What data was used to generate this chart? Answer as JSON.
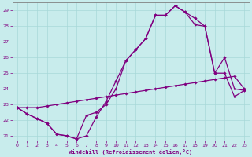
{
  "xlabel": "Windchill (Refroidissement éolien,°C)",
  "background_color": "#c8ecec",
  "line_color": "#800080",
  "grid_color": "#a8d8d8",
  "xlim": [
    -0.5,
    23.5
  ],
  "ylim": [
    20.7,
    29.5
  ],
  "yticks": [
    21,
    22,
    23,
    24,
    25,
    26,
    27,
    28,
    29
  ],
  "xticks": [
    0,
    1,
    2,
    3,
    4,
    5,
    6,
    7,
    8,
    9,
    10,
    11,
    12,
    13,
    14,
    15,
    16,
    17,
    18,
    19,
    20,
    21,
    22,
    23
  ],
  "line1_x": [
    0,
    1,
    2,
    3,
    4,
    5,
    6,
    7,
    8,
    9,
    10,
    11,
    12,
    13,
    14,
    15,
    16,
    17,
    18,
    19,
    20,
    21,
    22,
    23
  ],
  "line1_y": [
    22.8,
    22.4,
    22.1,
    21.8,
    21.1,
    21.0,
    20.8,
    21.0,
    22.2,
    23.2,
    24.5,
    25.8,
    26.5,
    27.2,
    28.7,
    28.7,
    29.3,
    28.9,
    28.5,
    28.0,
    25.0,
    26.0,
    24.0,
    23.9
  ],
  "line2_x": [
    0,
    1,
    2,
    3,
    4,
    5,
    6,
    7,
    8,
    9,
    10,
    11,
    12,
    13,
    14,
    15,
    16,
    17,
    18,
    19,
    20,
    21,
    22,
    23
  ],
  "line2_y": [
    22.8,
    22.8,
    22.8,
    22.9,
    23.0,
    23.1,
    23.2,
    23.3,
    23.4,
    23.5,
    23.6,
    23.7,
    23.8,
    23.9,
    24.0,
    24.1,
    24.2,
    24.3,
    24.4,
    24.5,
    24.6,
    24.7,
    24.8,
    24.0
  ],
  "line3_x": [
    0,
    1,
    2,
    3,
    4,
    5,
    6,
    7,
    8,
    9,
    10,
    11,
    12,
    13,
    14,
    15,
    16,
    17,
    18,
    19,
    20,
    21,
    22,
    23
  ],
  "line3_y": [
    22.8,
    22.4,
    22.1,
    21.8,
    21.1,
    21.0,
    20.8,
    22.3,
    22.5,
    23.0,
    24.0,
    25.8,
    26.5,
    27.2,
    28.7,
    28.7,
    29.3,
    28.9,
    28.1,
    28.0,
    25.0,
    25.0,
    23.5,
    23.9
  ]
}
